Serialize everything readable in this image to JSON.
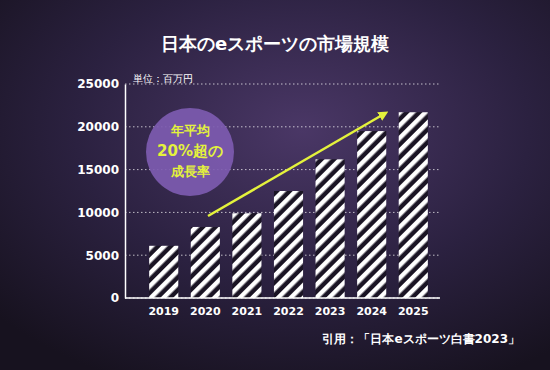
{
  "chart_data": {
    "type": "bar",
    "title": "日本のeスポーツの市場規模",
    "y_label": "単位：百万円",
    "annotation": [
      "年平均",
      "20%超の",
      "成長率"
    ],
    "source": "引用：「日本eスポーツ白書2023」",
    "categories": [
      "2019",
      "2020",
      "2021",
      "2022",
      "2023",
      "2024",
      "2025"
    ],
    "values": [
      6100,
      8300,
      9900,
      12500,
      16200,
      19500,
      21700
    ],
    "color": "#ffffff",
    "ylim": [
      0,
      25000
    ],
    "yticks": [
      0,
      5000,
      10000,
      15000,
      20000,
      25000
    ],
    "grid": true
  }
}
